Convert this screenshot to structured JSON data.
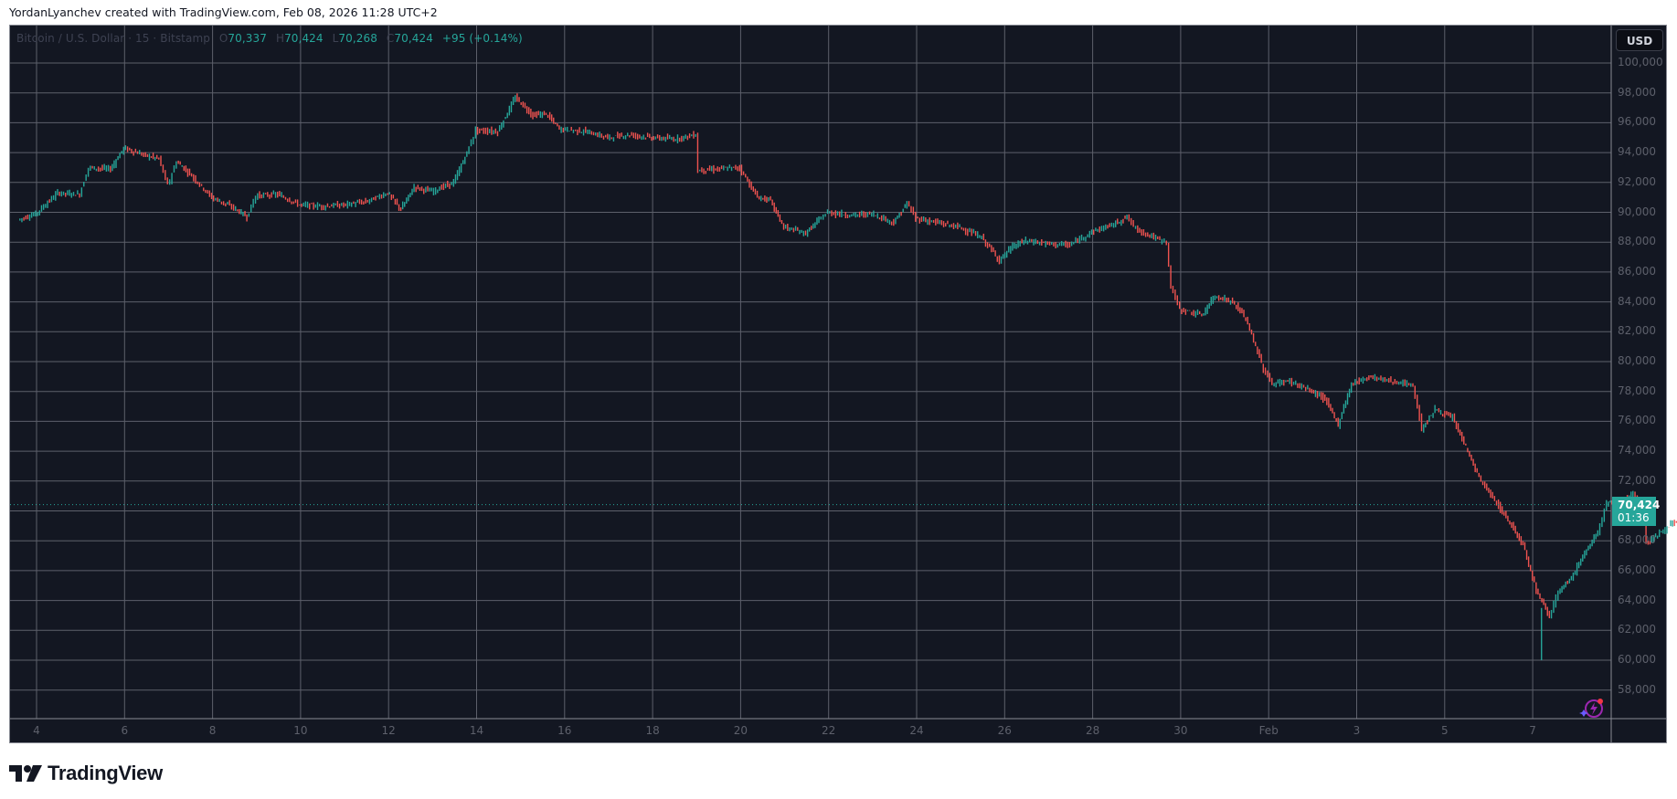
{
  "caption": "YordanLyanchev created with TradingView.com, Feb 08, 2026 11:28 UTC+2",
  "legend": {
    "symbol": "Bitcoin / U.S. Dollar · 15 · Bitstamp",
    "open_key": "O",
    "open": "70,337",
    "high_key": "H",
    "high": "70,424",
    "low_key": "L",
    "low": "70,268",
    "close_key": "C",
    "close": "70,424",
    "change": "+95 (+0.14%)"
  },
  "currency_button": "USD",
  "last_price": {
    "value": "70,424",
    "countdown": "01:36"
  },
  "logo_text": "TradingView",
  "colors": {
    "background": "#131722",
    "up": "#26a69a",
    "down": "#ef5350",
    "grid": "#5d606b",
    "last_price": "#26a69a"
  },
  "chart_data": {
    "type": "line",
    "title": "Bitcoin / U.S. Dollar · 15 · Bitstamp",
    "subtype": "candlestick (15-minute), sampled closes",
    "xlabel": "",
    "ylabel": "USD",
    "ylim": [
      56500,
      101800
    ],
    "grid": true,
    "price_ticks": [
      "100,000",
      "98,000",
      "96,000",
      "94,000",
      "92,000",
      "90,000",
      "88,000",
      "86,000",
      "84,000",
      "82,000",
      "80,000",
      "78,000",
      "76,000",
      "74,000",
      "72,000",
      "70,000",
      "68,000",
      "66,000",
      "64,000",
      "62,000",
      "60,000",
      "58,000"
    ],
    "price_tick_values": [
      100000,
      98000,
      96000,
      94000,
      92000,
      90000,
      88000,
      86000,
      84000,
      82000,
      80000,
      78000,
      76000,
      74000,
      72000,
      70000,
      68000,
      66000,
      64000,
      62000,
      60000,
      58000
    ],
    "time_ticks": [
      "4",
      "6",
      "8",
      "10",
      "12",
      "14",
      "16",
      "18",
      "20",
      "22",
      "24",
      "26",
      "28",
      "30",
      "Feb",
      "3",
      "5",
      "7"
    ],
    "time_tick_days": [
      4,
      6,
      8,
      10,
      12,
      14,
      16,
      18,
      20,
      22,
      24,
      26,
      28,
      30,
      32,
      34,
      36,
      38
    ],
    "day_axis_note": "days counted from Jan 0; 32 = Feb 1",
    "x": [
      3.6,
      4,
      4.5,
      5,
      5.2,
      5.7,
      6,
      6.5,
      6.8,
      7,
      7.2,
      7.5,
      8,
      8.5,
      8.8,
      9,
      9.5,
      10,
      10.5,
      11,
      11.5,
      12,
      12.3,
      12.6,
      13,
      13.5,
      13.8,
      14,
      14.5,
      14.9,
      15.3,
      15.6,
      15.9,
      16.5,
      17,
      17.5,
      18,
      18.5,
      19,
      19.05,
      19.5,
      20,
      20.4,
      20.7,
      21,
      21.5,
      21.8,
      22,
      22.5,
      23,
      23.5,
      23.8,
      24,
      24.5,
      25,
      25.5,
      25.9,
      26.2,
      26.5,
      27,
      27.5,
      28,
      28.5,
      28.8,
      29,
      29.5,
      29.7,
      29.8,
      30,
      30.5,
      30.8,
      31.2,
      31.5,
      31.9,
      32.1,
      32.5,
      33,
      33.3,
      33.6,
      33.9,
      34.3,
      34.8,
      35.3,
      35.5,
      35.8,
      36.2,
      36.5,
      36.8,
      37.2,
      37.5,
      37.8,
      38.1,
      38.4,
      38.6,
      38.9,
      39.2,
      39.5,
      39.7,
      40,
      40.3,
      40.5,
      40.6,
      40.9,
      41.2,
      41.5,
      41.8,
      42.1,
      42.2
    ],
    "values": [
      89500,
      89900,
      91300,
      91200,
      93000,
      92900,
      94300,
      93800,
      93600,
      91800,
      93400,
      92600,
      91000,
      90300,
      89700,
      91100,
      91200,
      90500,
      90400,
      90500,
      90700,
      91300,
      90200,
      91700,
      91400,
      92000,
      94000,
      95500,
      95400,
      97700,
      96500,
      96600,
      95600,
      95400,
      95000,
      95200,
      95000,
      94900,
      95200,
      92800,
      92900,
      93000,
      91000,
      90800,
      89000,
      88600,
      89500,
      90000,
      89800,
      89900,
      89300,
      90600,
      89600,
      89300,
      89000,
      88300,
      86800,
      87700,
      88100,
      87900,
      87800,
      88700,
      89200,
      89700,
      88900,
      88200,
      88000,
      85000,
      83500,
      83100,
      84400,
      84000,
      82900,
      79500,
      78500,
      78700,
      78000,
      77500,
      75800,
      78500,
      79000,
      78700,
      78400,
      75500,
      76800,
      76200,
      74300,
      72200,
      70500,
      69200,
      67800,
      64700,
      63000,
      64500,
      65500,
      67200,
      68500,
      70600,
      70500,
      71200,
      70300,
      67800,
      68500,
      69200,
      69000,
      69100,
      69300,
      70424
    ],
    "annotations": {
      "last_price": 70424,
      "low_wick": 60000,
      "high": 97800
    }
  }
}
